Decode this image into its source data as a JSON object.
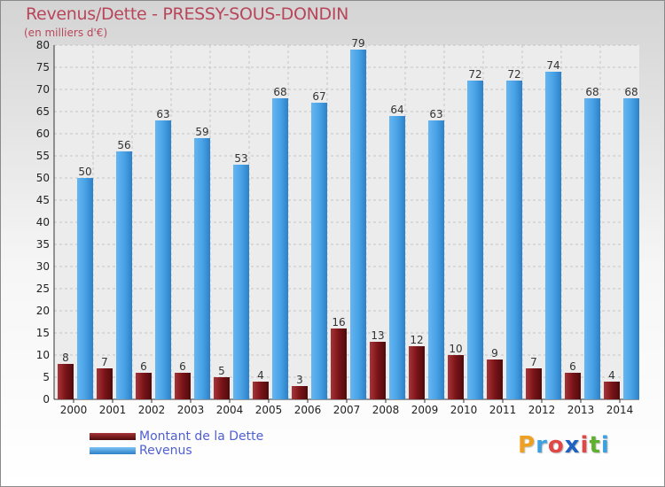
{
  "header": {
    "title": "Revenus/Dette - PRESSY-SOUS-DONDIN",
    "subtitle": "(en milliers d'€)"
  },
  "legend": {
    "items": [
      {
        "label": "Montant de la Dette",
        "color": "#7a1418"
      },
      {
        "label": "Revenus",
        "color": "#4aa3e6"
      }
    ]
  },
  "logo": {
    "text": "Proxiti",
    "letters": [
      {
        "ch": "P",
        "color": "#f0a020"
      },
      {
        "ch": "r",
        "color": "#3da0e0"
      },
      {
        "ch": "o",
        "color": "#e04848"
      },
      {
        "ch": "x",
        "color": "#2060c0"
      },
      {
        "ch": "i",
        "color": "#e04848"
      },
      {
        "ch": "t",
        "color": "#60b030"
      },
      {
        "ch": "i",
        "color": "#3da0e0"
      }
    ]
  },
  "chart_data": {
    "type": "bar",
    "title": "Revenus/Dette - PRESSY-SOUS-DONDIN",
    "subtitle": "(en milliers d'€)",
    "categories": [
      "2000",
      "2001",
      "2002",
      "2003",
      "2004",
      "2005",
      "2006",
      "2007",
      "2008",
      "2009",
      "2010",
      "2011",
      "2012",
      "2013",
      "2014"
    ],
    "series": [
      {
        "name": "Montant de la Dette",
        "color": "#7a1418",
        "values": [
          8,
          7,
          6,
          6,
          5,
          4,
          3,
          16,
          13,
          12,
          10,
          9,
          7,
          6,
          4
        ]
      },
      {
        "name": "Revenus",
        "color": "#4aa3e6",
        "values": [
          50,
          56,
          63,
          59,
          53,
          68,
          67,
          79,
          64,
          63,
          72,
          72,
          74,
          68,
          68
        ]
      }
    ],
    "ylim": [
      0,
      80
    ],
    "yticks": [
      0,
      5,
      10,
      15,
      20,
      25,
      30,
      35,
      40,
      45,
      50,
      55,
      60,
      65,
      70,
      75,
      80
    ],
    "grid": true,
    "legend_position": "bottom-left"
  }
}
